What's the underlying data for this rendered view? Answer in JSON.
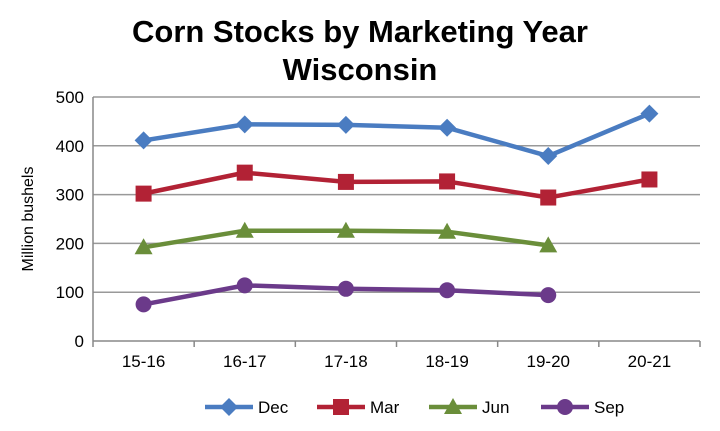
{
  "chart_data": {
    "type": "line",
    "title": "Corn Stocks by Marketing Year",
    "subtitle": "Wisconsin",
    "xlabel": "",
    "ylabel": "Million bushels",
    "categories": [
      "15-16",
      "16-17",
      "17-18",
      "18-19",
      "19-20",
      "20-21"
    ],
    "ylim": [
      0,
      500
    ],
    "yticks": [
      0,
      100,
      200,
      300,
      400,
      500
    ],
    "grid": true,
    "legend": "bottom",
    "series": [
      {
        "name": "Dec",
        "color": "#4a7cc1",
        "marker": "diamond",
        "values": [
          411,
          444,
          443,
          437,
          379,
          466
        ]
      },
      {
        "name": "Mar",
        "color": "#b22235",
        "marker": "square",
        "values": [
          302,
          345,
          326,
          327,
          294,
          331
        ]
      },
      {
        "name": "Jun",
        "color": "#6a8e3a",
        "marker": "triangle",
        "values": [
          192,
          226,
          226,
          224,
          196,
          null
        ]
      },
      {
        "name": "Sep",
        "color": "#6b3a8a",
        "marker": "circle",
        "values": [
          75,
          114,
          107,
          104,
          94,
          null
        ]
      }
    ]
  }
}
